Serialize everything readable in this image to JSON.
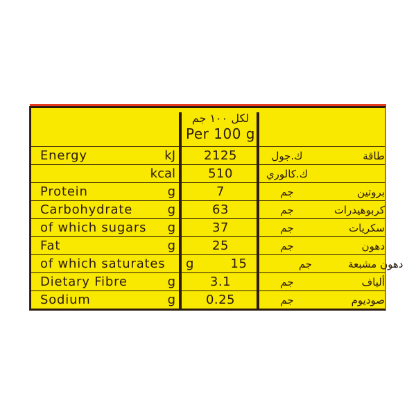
{
  "table": {
    "header": {
      "per_100g_arabic": "لكل ١٠٠ جم",
      "per_100g_english": "Per 100 g"
    },
    "rows": [
      {
        "label": "Energy",
        "unit": "kJ",
        "value": "2125",
        "unit_ar": "ك.جول",
        "label_ar": "طاقة"
      },
      {
        "label": "",
        "unit": "kcal",
        "value": "510",
        "unit_ar": "ك.كالوري",
        "label_ar": ""
      },
      {
        "label": "Protein",
        "unit": "g",
        "value": "7",
        "unit_ar": "جم",
        "label_ar": "بروتين"
      },
      {
        "label": "Carbohydrate",
        "unit": "g",
        "value": "63",
        "unit_ar": "جم",
        "label_ar": "كربوهيدرات"
      },
      {
        "label": "of which sugars",
        "unit": "g",
        "value": "37",
        "unit_ar": "جم",
        "label_ar": "سكريات"
      },
      {
        "label": "Fat",
        "unit": "g",
        "value": "25",
        "unit_ar": "جم",
        "label_ar": "دهون"
      },
      {
        "label": "of which saturates",
        "unit": "g",
        "value": "15",
        "unit_ar": "جم",
        "label_ar": "دهون مشبعة"
      },
      {
        "label": "Dietary Fibre",
        "unit": "g",
        "value": "3.1",
        "unit_ar": "جم",
        "label_ar": "ألياف"
      },
      {
        "label": "Sodium",
        "unit": "g",
        "value": "0.25",
        "unit_ar": "جم",
        "label_ar": "صوديوم"
      }
    ],
    "colors": {
      "background_yellow": "#f9e800",
      "text_dark_brown": "#2b1a0d",
      "accent_red": "#e63a1e",
      "border_right_orange": "#d2690f",
      "page_background": "#ffffff"
    }
  }
}
